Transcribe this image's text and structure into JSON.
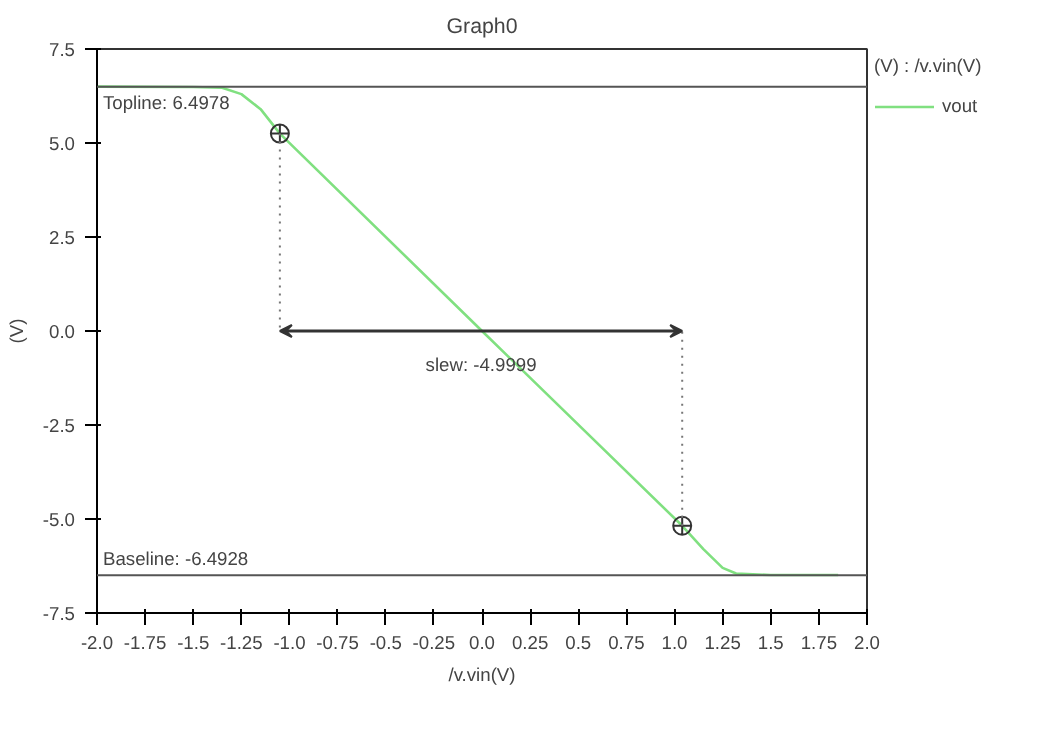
{
  "chart_data": {
    "type": "line",
    "title": "Graph0",
    "xlabel": "/v.vin(V)",
    "ylabel": "(V)",
    "legend_title": "(V) : /v.vin(V)",
    "legend": "top right",
    "grid": false,
    "xlim": [
      -2.0,
      2.0
    ],
    "ylim": [
      -7.5,
      7.5
    ],
    "xticks": [
      {
        "value": -2.0,
        "label": "-2.0"
      },
      -1.75,
      -1.5,
      -1.25,
      {
        "value": -1.0,
        "label": "-1.0"
      },
      -0.75,
      -0.5,
      -0.25,
      {
        "value": 0,
        "label": "0.0"
      },
      0.25,
      0.5,
      0.75,
      {
        "value": 1.0,
        "label": "1.0"
      },
      1.25,
      1.5,
      1.75,
      {
        "value": 2.0,
        "label": "2.0"
      }
    ],
    "yticks": [
      {
        "value": 7.5,
        "label": "7.5"
      },
      {
        "value": 5,
        "label": "5.0"
      },
      {
        "value": 2.5,
        "label": "2.5"
      },
      {
        "value": 0,
        "label": "0.0"
      },
      {
        "value": -2.5,
        "label": "-2.5"
      },
      {
        "value": -5,
        "label": "-5.0"
      },
      {
        "value": -7.5,
        "label": "-7.5"
      }
    ],
    "series": [
      {
        "name": "vout",
        "color": "#80e080",
        "x": [
          -2.0,
          -1.5,
          -1.35,
          -1.25,
          -1.15,
          -1.05,
          0.0,
          1.04,
          1.15,
          1.25,
          1.32,
          1.5,
          1.85
        ],
        "values": [
          6.5,
          6.49,
          6.47,
          6.3,
          5.9,
          5.25,
          0.0,
          -5.18,
          -5.8,
          -6.3,
          -6.45,
          -6.49,
          -6.49
        ]
      },
      {
        "type": "scatter",
        "marker": "circle",
        "color": "#333333",
        "x": [
          -1.05,
          1.04
        ],
        "values": [
          5.25,
          -5.18
        ]
      }
    ],
    "ref_lines": [
      {
        "axis": "y",
        "value": 6.4978,
        "label": "Topline: 6.4978",
        "color": "#555555"
      },
      {
        "axis": "y",
        "value": -6.4928,
        "label": "Baseline: -6.4928",
        "color": "#555555"
      }
    ],
    "annotations": [
      "slew: -4.9999"
    ]
  }
}
